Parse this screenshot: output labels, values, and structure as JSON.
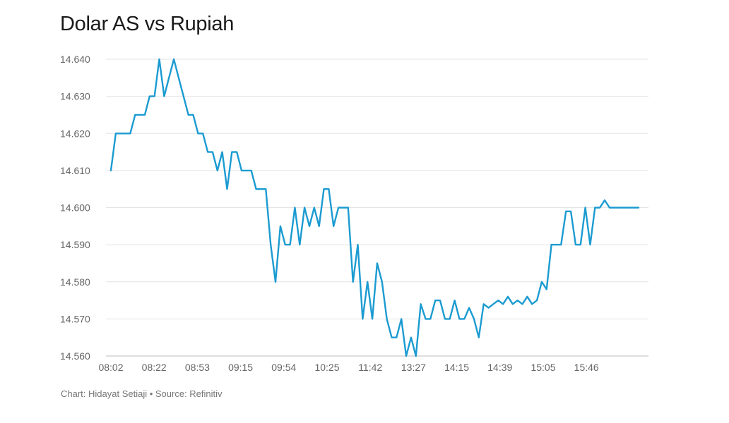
{
  "chart_data": {
    "type": "line",
    "title": "Dolar AS vs Rupiah",
    "xlabel": "",
    "ylabel": "",
    "ylim": [
      14560,
      14640
    ],
    "yticks": [
      14560,
      14570,
      14580,
      14590,
      14600,
      14610,
      14620,
      14630,
      14640
    ],
    "ytick_labels": [
      "14.560",
      "14.570",
      "14.580",
      "14.590",
      "14.600",
      "14.610",
      "14.620",
      "14.630",
      "14.640"
    ],
    "x_tick_labels": [
      "08:02",
      "08:22",
      "08:53",
      "09:15",
      "09:54",
      "10:25",
      "11:42",
      "13:27",
      "14:15",
      "14:39",
      "15:05",
      "15:46"
    ],
    "grid": true,
    "color": "#1b9bd1",
    "series": [
      {
        "values": [
          14610,
          14620,
          14620,
          14620,
          14620,
          14625,
          14625,
          14625,
          14630,
          14630,
          14640,
          14630,
          14635,
          14640,
          14635,
          14630,
          14625,
          14625,
          14620,
          14620,
          14615,
          14615,
          14610,
          14615,
          14605,
          14615,
          14615,
          14610,
          14610,
          14610,
          14605,
          14605,
          14605,
          14590,
          14580,
          14595,
          14590,
          14590,
          14600,
          14590,
          14600,
          14595,
          14600,
          14595,
          14605,
          14605,
          14595,
          14600,
          14600,
          14600,
          14580,
          14590,
          14570,
          14580,
          14570,
          14585,
          14580,
          14570,
          14565,
          14565,
          14570,
          14560,
          14565,
          14560,
          14574,
          14570,
          14570,
          14575,
          14575,
          14570,
          14570,
          14575,
          14570,
          14570,
          14573,
          14570,
          14565,
          14574,
          14573,
          14574,
          14575,
          14574,
          14576,
          14574,
          14575,
          14574,
          14576,
          14574,
          14575,
          14580,
          14578,
          14590,
          14590,
          14590,
          14599,
          14599,
          14590,
          14590,
          14600,
          14590,
          14600,
          14600,
          14602,
          14600,
          14600,
          14600,
          14600,
          14600,
          14600,
          14600
        ]
      }
    ]
  },
  "footer": "Chart: Hidayat Setiaji • Source: Refinitiv"
}
